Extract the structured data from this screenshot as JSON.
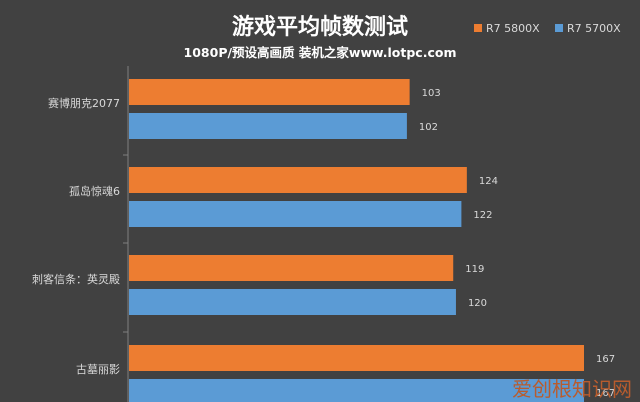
{
  "title": "游戏平均帧数测试",
  "subtitle": "1080P/预设高画质 装机之家www.lotpc.com",
  "watermark": "爱创根知识网",
  "colors": {
    "background": "#414141",
    "series_a": "#ed7d31",
    "series_b": "#5b9bd5",
    "axis": "#7f7f7f",
    "grid": "#595959"
  },
  "chart_data": {
    "type": "bar",
    "orientation": "horizontal",
    "categories": [
      "赛博朋克2077",
      "孤岛惊魂6",
      "刺客信条：英灵殿",
      "古墓丽影"
    ],
    "series": [
      {
        "name": "R7 5800X",
        "values": [
          103,
          124,
          119,
          167
        ]
      },
      {
        "name": "R7 5700X",
        "values": [
          102,
          122,
          120,
          167
        ]
      }
    ],
    "xlim": [
      0,
      180
    ],
    "legend": "top-right",
    "grid": false
  }
}
